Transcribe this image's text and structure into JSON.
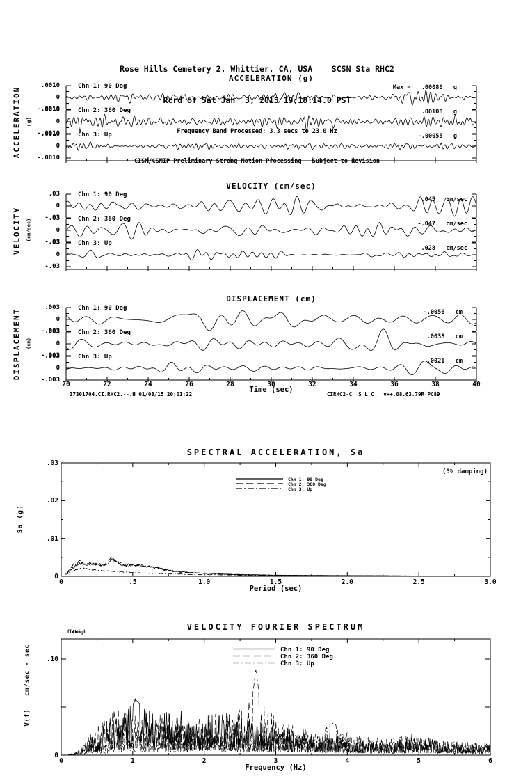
{
  "header": {
    "line1": "Rose Hills Cemetery 2, Whittier, CA, USA    SCSN Sta RHC2",
    "line2": "Rcrd of Sat Jan  3, 2015 19:18:14.0 PST",
    "line3": "Frequency Band Processed: 3.3 secs to 23.0 Hz",
    "line4": "CISN/CSMIP Preliminary Strong Motion Processing - Subject to Revision"
  },
  "footer": {
    "left": "37301704.CI.RHC2.--.H 01/03/15 20:01:22",
    "right": "CIRHC2-C  S_L_C_  v++.08.63.79R PC89"
  },
  "chart_data": [
    {
      "id": "acceleration-time-series",
      "type": "line",
      "title": "ACCELERATION (g)",
      "side_label": "ACCELERATION",
      "side_unit": "(g)",
      "xlim": [
        20,
        40
      ],
      "strip_ylim": [
        -0.001,
        0.001
      ],
      "strip_yticks": [
        ".0010",
        "0",
        "-.0010"
      ],
      "channels": [
        {
          "label": "Chn 1: 90 Deg",
          "max_label": "Max =   .00086   g",
          "max_value": 0.00086,
          "gen": {
            "seed": 101,
            "f1": 20,
            "f2": 115,
            "amp": 0.8
          }
        },
        {
          "label": "Chn 2: 360 Deg",
          "max_label": ".00108   g",
          "max_value": 0.00108,
          "gen": {
            "seed": 102,
            "f1": 20,
            "f2": 110,
            "amp": 1.0
          }
        },
        {
          "label": "Chn 3: Up",
          "max_label": "-.00055   g",
          "max_value": -0.00055,
          "gen": {
            "seed": 103,
            "f1": 24,
            "f2": 125,
            "amp": 0.55
          }
        }
      ]
    },
    {
      "id": "velocity-time-series",
      "type": "line",
      "title": "VELOCITY (cm/sec)",
      "side_label": "VELOCITY",
      "side_unit": "(cm/sec)",
      "xlim": [
        20,
        40
      ],
      "strip_ylim": [
        -0.03,
        0.03
      ],
      "strip_yticks": [
        ".03",
        "0",
        "-.03"
      ],
      "channels": [
        {
          "label": "Chn 1: 90 Deg",
          "max_label": ".045   cm/sec",
          "max_value": 0.045,
          "gen": {
            "seed": 201,
            "f1": 8,
            "f2": 42,
            "amp": 1.1
          }
        },
        {
          "label": "Chn 2: 360 Deg",
          "max_label": "-.047   cm/sec",
          "max_value": -0.047,
          "gen": {
            "seed": 202,
            "f1": 7,
            "f2": 38,
            "amp": 1.15
          }
        },
        {
          "label": "Chn 3: Up",
          "max_label": ".028   cm/sec",
          "max_value": 0.028,
          "gen": {
            "seed": 203,
            "f1": 10,
            "f2": 48,
            "amp": 0.7
          }
        }
      ]
    },
    {
      "id": "displacement-time-series",
      "type": "line",
      "title": "DISPLACEMENT (cm)",
      "side_label": "DISPLACEMENT",
      "side_unit": "(cm)",
      "xlabel": "Time (sec)",
      "xlim": [
        20,
        40
      ],
      "xticks": [
        "20",
        "22",
        "24",
        "26",
        "28",
        "30",
        "32",
        "34",
        "36",
        "38",
        "40"
      ],
      "strip_ylim": [
        -0.003,
        0.003
      ],
      "strip_yticks": [
        ".003",
        "0",
        "-.003"
      ],
      "channels": [
        {
          "label": "Chn 1: 90 Deg",
          "max_label": "-.0056   cm",
          "max_value": -0.0056,
          "gen": {
            "seed": 301,
            "f1": 5,
            "f2": 22,
            "amp": 1.45
          }
        },
        {
          "label": "Chn 2: 360 Deg",
          "max_label": ".0038   cm",
          "max_value": 0.0038,
          "gen": {
            "seed": 302,
            "f1": 5,
            "f2": 24,
            "amp": 1.25
          }
        },
        {
          "label": "Chn 3: Up",
          "max_label": ".0021   cm",
          "max_value": 0.0021,
          "gen": {
            "seed": 303,
            "f1": 6,
            "f2": 26,
            "amp": 0.7
          }
        }
      ]
    },
    {
      "id": "spectral-acceleration",
      "type": "line",
      "title": "SPECTRAL ACCELERATION, Sa",
      "xlabel": "Period (sec)",
      "ylabel": "Sa (g)",
      "annotation": "(5% damping)",
      "xlim": [
        0,
        3
      ],
      "ylim": [
        0,
        0.03
      ],
      "xticks": [
        "0",
        ".5",
        "1.0",
        "1.5",
        "2.0",
        "2.5",
        "3.0"
      ],
      "yticks": [
        ".03",
        ".02",
        ".01",
        "0"
      ],
      "legend": [
        "Chn 1: 90 Deg",
        "Chn 2: 360 Deg",
        "Chn 3: Up"
      ],
      "series": [
        {
          "name": "Chn 1: 90 Deg",
          "style": "solid",
          "gen": {
            "seed": 401
          },
          "points": [
            [
              0.04,
              0.0008
            ],
            [
              0.1,
              0.0028
            ],
            [
              0.14,
              0.0035
            ],
            [
              0.18,
              0.003
            ],
            [
              0.22,
              0.0034
            ],
            [
              0.27,
              0.0028
            ],
            [
              0.32,
              0.003
            ],
            [
              0.36,
              0.0044
            ],
            [
              0.4,
              0.0033
            ],
            [
              0.45,
              0.003
            ],
            [
              0.52,
              0.0031
            ],
            [
              0.6,
              0.0026
            ],
            [
              0.7,
              0.002
            ],
            [
              0.8,
              0.0013
            ],
            [
              0.9,
              0.001
            ],
            [
              1.0,
              0.0008
            ],
            [
              1.2,
              0.0005
            ],
            [
              1.5,
              0.0003
            ],
            [
              2.0,
              0.0002
            ],
            [
              2.5,
              0.0001
            ],
            [
              3.0,
              0.0001
            ]
          ]
        },
        {
          "name": "Chn 2: 360 Deg",
          "style": "dashed",
          "gen": {
            "seed": 402
          },
          "points": [
            [
              0.04,
              0.0008
            ],
            [
              0.09,
              0.0032
            ],
            [
              0.13,
              0.004
            ],
            [
              0.17,
              0.003
            ],
            [
              0.21,
              0.0037
            ],
            [
              0.26,
              0.0033
            ],
            [
              0.3,
              0.0028
            ],
            [
              0.35,
              0.005
            ],
            [
              0.4,
              0.0036
            ],
            [
              0.46,
              0.0028
            ],
            [
              0.55,
              0.003
            ],
            [
              0.65,
              0.0024
            ],
            [
              0.75,
              0.0014
            ],
            [
              0.9,
              0.0009
            ],
            [
              1.05,
              0.0007
            ],
            [
              1.25,
              0.0004
            ],
            [
              1.55,
              0.0002
            ],
            [
              2.0,
              0.0002
            ],
            [
              2.5,
              0.0001
            ],
            [
              3.0,
              0.0001
            ]
          ]
        },
        {
          "name": "Chn 3: Up",
          "style": "dashdot",
          "gen": {
            "seed": 403
          },
          "points": [
            [
              0.04,
              0.0006
            ],
            [
              0.1,
              0.0018
            ],
            [
              0.15,
              0.0022
            ],
            [
              0.2,
              0.0017
            ],
            [
              0.28,
              0.0015
            ],
            [
              0.36,
              0.0013
            ],
            [
              0.45,
              0.0011
            ],
            [
              0.55,
              0.0009
            ],
            [
              0.7,
              0.0007
            ],
            [
              0.9,
              0.0005
            ],
            [
              1.1,
              0.0004
            ],
            [
              1.4,
              0.0002
            ],
            [
              1.8,
              0.0002
            ],
            [
              2.4,
              0.0001
            ],
            [
              3.0,
              0.0001
            ]
          ]
        }
      ]
    },
    {
      "id": "velocity-fourier-spectrum",
      "type": "line",
      "title": "VELOCITY FOURIER SPECTRUM",
      "xlabel": "Frequency (Hz)",
      "ylabel": "V(f)   cm/sec - sec",
      "fc_labels": [
        "fcLow",
        "fcHigh"
      ],
      "xlim": [
        0,
        6
      ],
      "ylim": [
        0,
        0.12
      ],
      "xticks": [
        "0",
        "1",
        "2",
        "3",
        "4",
        "5",
        "6"
      ],
      "yticks": [
        ".10",
        "0"
      ],
      "legend": [
        "Chn 1: 90 Deg",
        "Chn 2: 360 Deg",
        "Chn 3: Up"
      ],
      "series": [
        {
          "name": "Chn 1: 90 Deg",
          "style": "solid",
          "gen": {
            "seed": 501
          },
          "peak": {
            "x": 1.05,
            "y": 0.062
          },
          "envelope": [
            [
              0.1,
              0.0005
            ],
            [
              0.25,
              0.004
            ],
            [
              0.35,
              0.015
            ],
            [
              0.5,
              0.028
            ],
            [
              0.7,
              0.04
            ],
            [
              0.9,
              0.05
            ],
            [
              1.05,
              0.062
            ],
            [
              1.2,
              0.05
            ],
            [
              1.4,
              0.045
            ],
            [
              1.6,
              0.05
            ],
            [
              1.8,
              0.042
            ],
            [
              2.0,
              0.04
            ],
            [
              2.2,
              0.046
            ],
            [
              2.5,
              0.04
            ],
            [
              2.8,
              0.036
            ],
            [
              3.0,
              0.032
            ],
            [
              3.2,
              0.028
            ],
            [
              3.5,
              0.02
            ],
            [
              3.8,
              0.018
            ],
            [
              4.2,
              0.016
            ],
            [
              4.6,
              0.014
            ],
            [
              5.0,
              0.02
            ],
            [
              5.4,
              0.014
            ],
            [
              5.7,
              0.012
            ],
            [
              6.0,
              0.012
            ]
          ]
        },
        {
          "name": "Chn 2: 360 Deg",
          "style": "dashed",
          "gen": {
            "seed": 502
          },
          "peak": {
            "x": 2.72,
            "y": 0.097
          },
          "envelope": [
            [
              0.1,
              0.0005
            ],
            [
              0.25,
              0.005
            ],
            [
              0.4,
              0.02
            ],
            [
              0.6,
              0.04
            ],
            [
              0.8,
              0.05
            ],
            [
              1.0,
              0.042
            ],
            [
              1.2,
              0.038
            ],
            [
              1.5,
              0.045
            ],
            [
              1.8,
              0.036
            ],
            [
              2.1,
              0.042
            ],
            [
              2.4,
              0.046
            ],
            [
              2.6,
              0.05
            ],
            [
              2.68,
              0.07
            ],
            [
              2.72,
              0.097
            ],
            [
              2.78,
              0.065
            ],
            [
              2.9,
              0.045
            ],
            [
              3.1,
              0.038
            ],
            [
              3.4,
              0.028
            ],
            [
              3.7,
              0.022
            ],
            [
              4.0,
              0.018
            ],
            [
              4.4,
              0.016
            ],
            [
              4.8,
              0.02
            ],
            [
              5.2,
              0.016
            ],
            [
              5.6,
              0.013
            ],
            [
              6.0,
              0.012
            ]
          ]
        },
        {
          "name": "Chn 3: Up",
          "style": "dashdot",
          "gen": {
            "seed": 503
          },
          "peak": {
            "x": 3.8,
            "y": 0.036
          },
          "envelope": [
            [
              0.1,
              0.0005
            ],
            [
              0.3,
              0.004
            ],
            [
              0.5,
              0.012
            ],
            [
              0.8,
              0.022
            ],
            [
              1.1,
              0.028
            ],
            [
              1.4,
              0.024
            ],
            [
              1.7,
              0.028
            ],
            [
              2.0,
              0.026
            ],
            [
              2.3,
              0.024
            ],
            [
              2.6,
              0.028
            ],
            [
              2.9,
              0.026
            ],
            [
              3.2,
              0.024
            ],
            [
              3.5,
              0.028
            ],
            [
              3.8,
              0.036
            ],
            [
              4.1,
              0.022
            ],
            [
              4.5,
              0.018
            ],
            [
              4.9,
              0.022
            ],
            [
              5.3,
              0.016
            ],
            [
              5.7,
              0.014
            ],
            [
              6.0,
              0.013
            ]
          ]
        }
      ]
    }
  ]
}
